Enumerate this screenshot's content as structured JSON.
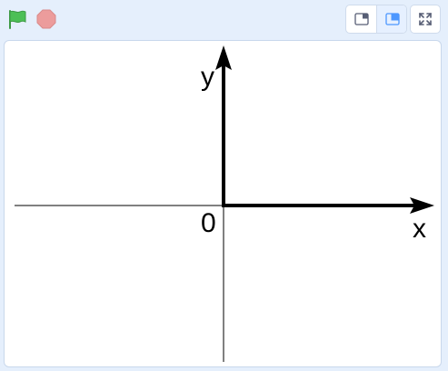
{
  "toolbar": {
    "green_flag_icon": "green-flag-icon",
    "stop_icon": "stop-icon",
    "small_stage_icon": "small-stage-icon",
    "normal_stage_icon": "normal-stage-icon",
    "fullscreen_icon": "fullscreen-icon"
  },
  "stage": {
    "y_label": "y",
    "x_label": "x",
    "origin_label": "0"
  },
  "colors": {
    "flag": "#4cbf56",
    "stop": "#ec9c9c",
    "accent": "#4c97ff",
    "background": "#e5effc"
  }
}
